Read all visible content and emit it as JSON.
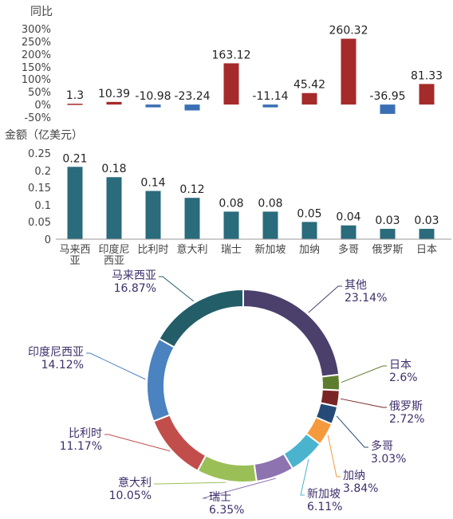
{
  "chart_data": [
    {
      "type": "bar",
      "title": "同比",
      "unit": "%",
      "categories": [
        "马来西亚",
        "印度尼西亚",
        "比利时",
        "意大利",
        "瑞士",
        "新加坡",
        "加纳",
        "多哥",
        "俄罗斯",
        "日本"
      ],
      "values": [
        1.3,
        10.39,
        -10.98,
        -23.24,
        163.12,
        -11.14,
        45.42,
        260.32,
        -36.95,
        81.33
      ],
      "value_labels": [
        "1.3",
        "10.39",
        "-10.98",
        "-23.24",
        "163.12",
        "-11.14",
        "45.42",
        "260.32",
        "-36.95",
        "81.33"
      ],
      "yticks": [
        "300%",
        "250%",
        "200%",
        "150%",
        "100%",
        "50%",
        "0%",
        "-50%"
      ],
      "ylim": [
        -50,
        300
      ],
      "positive_color": "#a52a2a",
      "negative_color": "#3a6fb3"
    },
    {
      "type": "bar",
      "title": "金额（亿美元）",
      "categories": [
        "马来西亚",
        "印度尼西亚",
        "比利时",
        "意大利",
        "瑞士",
        "新加坡",
        "加纳",
        "多哥",
        "俄罗斯",
        "日本"
      ],
      "x_labels": [
        [
          "马来西",
          "亚"
        ],
        [
          "印度尼",
          "西亚"
        ],
        [
          "比利时"
        ],
        [
          "意大利"
        ],
        [
          "瑞士"
        ],
        [
          "新加坡"
        ],
        [
          "加纳"
        ],
        [
          "多哥"
        ],
        [
          "俄罗斯"
        ],
        [
          "日本"
        ]
      ],
      "values": [
        0.21,
        0.18,
        0.14,
        0.12,
        0.08,
        0.08,
        0.05,
        0.04,
        0.03,
        0.03
      ],
      "value_labels": [
        "0.21",
        "0.18",
        "0.14",
        "0.12",
        "0.08",
        "0.08",
        "0.05",
        "0.04",
        "0.03",
        "0.03"
      ],
      "yticks": [
        "0.25",
        "0.2",
        "0.15",
        "0.1",
        "0.05",
        "0"
      ],
      "ylim": [
        0,
        0.25
      ],
      "color": "#2a6b7c"
    },
    {
      "type": "pie",
      "donut": true,
      "slices": [
        {
          "name": "其他",
          "value": 23.14,
          "label": "23.14%",
          "color": "#4b3f6b"
        },
        {
          "name": "日本",
          "value": 2.6,
          "label": "2.6%",
          "color": "#5c7d2e"
        },
        {
          "name": "俄罗斯",
          "value": 2.72,
          "label": "2.72%",
          "color": "#7a2525"
        },
        {
          "name": "多哥",
          "value": 3.03,
          "label": "3.03%",
          "color": "#254a77"
        },
        {
          "name": "加纳",
          "value": 3.84,
          "label": "3.84%",
          "color": "#f59a3c"
        },
        {
          "name": "新加坡",
          "value": 6.11,
          "label": "6.11%",
          "color": "#4ab4cf"
        },
        {
          "name": "瑞士",
          "value": 6.35,
          "label": "6.35%",
          "color": "#8d73b0"
        },
        {
          "name": "意大利",
          "value": 10.05,
          "label": "10.05%",
          "color": "#9bbf57"
        },
        {
          "name": "比利时",
          "value": 11.17,
          "label": "11.17%",
          "color": "#c24e4b"
        },
        {
          "name": "印度尼西亚",
          "value": 14.12,
          "label": "14.12%",
          "color": "#4b82c0"
        },
        {
          "name": "马来西亚",
          "value": 16.87,
          "label": "16.87%",
          "color": "#235d68"
        }
      ]
    }
  ]
}
